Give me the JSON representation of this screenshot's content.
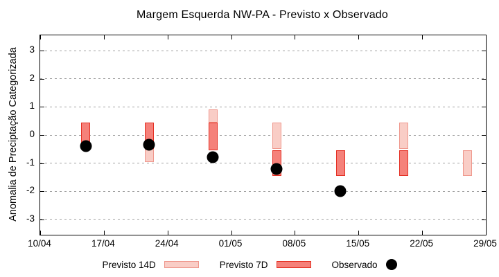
{
  "title": "Margem Esquerda NW-PA - Previsto x Observado",
  "y_axis_label": "Anomalia de Preciptação Categorizada",
  "legend": {
    "items": [
      {
        "label": "Previsto 14D",
        "swatch": "box-light"
      },
      {
        "label": "Previsto 7D",
        "swatch": "box-dark"
      },
      {
        "label": "Observado",
        "swatch": "dot"
      }
    ]
  },
  "colors": {
    "previsto14_fill": "#f9cdc6",
    "previsto14_border": "#ef978c",
    "previsto7_fill": "#f5817a",
    "previsto7_border": "#e42f23",
    "observed": "#000000",
    "grid": "#9f9f9f",
    "axis": "#000000",
    "background": "#ffffff"
  },
  "chart_data": {
    "type": "bar",
    "subtype": "floating-range-bars-with-observed-points",
    "title": "Margem Esquerda NW-PA - Previsto x Observado",
    "xlabel": "",
    "ylabel": "Anomalia de Preciptação Categorizada",
    "x_ticks": [
      "10/04",
      "17/04",
      "24/04",
      "01/05",
      "08/05",
      "15/05",
      "22/05",
      "29/05"
    ],
    "y_ticks": [
      3,
      2,
      1,
      0,
      -1,
      -2,
      -3
    ],
    "ylim": [
      -3.55,
      3.55
    ],
    "grid": "horizontal-dashed",
    "legend_position": "bottom",
    "series": [
      {
        "name": "Previsto 14D",
        "type": "range-bar",
        "fill": "#f9cdc6",
        "border": "#ef978c",
        "ranges": [
          {
            "x": "22/04",
            "low": -0.95,
            "high": 0.45
          },
          {
            "x": "29/04",
            "low": 0.45,
            "high": 0.9
          },
          {
            "x": "06/05",
            "low": -0.5,
            "high": 0.45
          },
          {
            "x": "20/05",
            "low": -0.5,
            "high": 0.45
          },
          {
            "x": "27/05",
            "low": -1.45,
            "high": -0.55
          }
        ]
      },
      {
        "name": "Previsto 7D",
        "type": "range-bar",
        "fill": "#f5817a",
        "border": "#e42f23",
        "ranges": [
          {
            "x": "15/04",
            "low": -0.45,
            "high": 0.45
          },
          {
            "x": "22/04",
            "low": -0.5,
            "high": 0.45
          },
          {
            "x": "29/04",
            "low": -0.55,
            "high": 0.45
          },
          {
            "x": "06/05",
            "low": -1.45,
            "high": -0.55
          },
          {
            "x": "13/05",
            "low": -1.45,
            "high": -0.55
          },
          {
            "x": "20/05",
            "low": -1.45,
            "high": -0.55
          }
        ]
      },
      {
        "name": "Observado",
        "type": "scatter",
        "color": "#000000",
        "points": [
          {
            "x": "15/04",
            "y": -0.4
          },
          {
            "x": "22/04",
            "y": -0.35
          },
          {
            "x": "29/04",
            "y": -0.8
          },
          {
            "x": "06/05",
            "y": -1.2
          },
          {
            "x": "13/05",
            "y": -2.0
          }
        ]
      }
    ]
  }
}
